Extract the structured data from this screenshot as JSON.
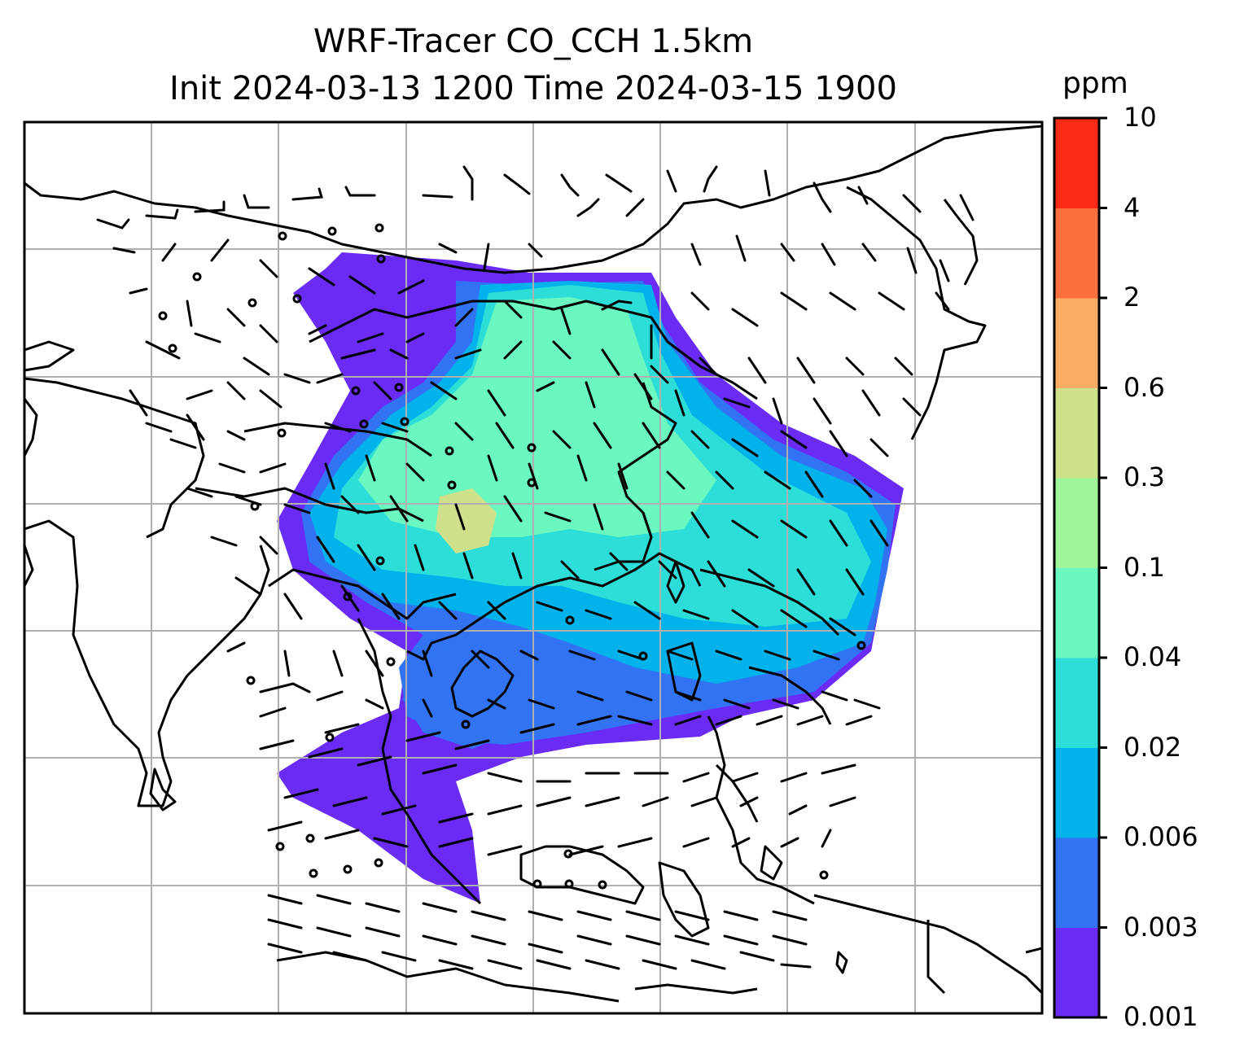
{
  "figure": {
    "title_line1": "WRF-Tracer CO_CCH 1.5km",
    "title_line2": "Init 2024-03-13 1200 Time 2024-03-15 1900"
  },
  "colorbar": {
    "unit": "ppm",
    "ticks": [
      "0.001",
      "0.003",
      "0.006",
      "0.02",
      "0.04",
      "0.1",
      "0.3",
      "0.6",
      "2",
      "4",
      "10"
    ],
    "colors": [
      "#6a2cf5",
      "#3173f3",
      "#02b2ea",
      "#2dddd7",
      "#6af7c0",
      "#9ef59a",
      "#cfe08a",
      "#fcad65",
      "#fd6f3c",
      "#fb2a17"
    ]
  },
  "map": {
    "gridline_color": "#b0b0b0",
    "plume_colors": {
      "outer": "#6a2cf5",
      "low": "#3173f3",
      "mid": "#02b2ea",
      "midhigh": "#2dddd7",
      "high": "#6af7c0",
      "peak": "#cfe08a"
    }
  }
}
